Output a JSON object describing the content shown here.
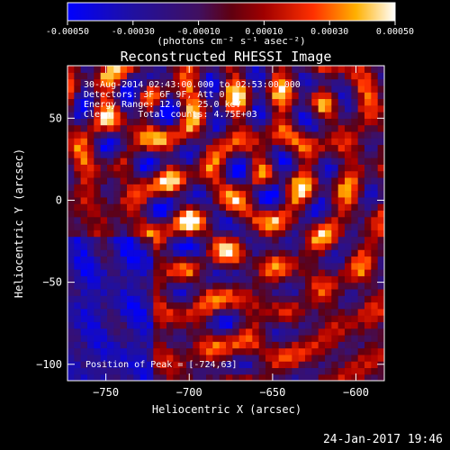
{
  "chart_data": {
    "type": "heatmap",
    "title": "Reconstructed RHESSI Image",
    "xlabel": "Heliocentric X (arcsec)",
    "ylabel": "Heliocentric Y (arcsec)",
    "xlim": [
      -773,
      -583
    ],
    "ylim": [
      -110,
      82
    ],
    "xticks": [
      -750,
      -700,
      -650,
      -600
    ],
    "yticks": [
      -100,
      -50,
      0,
      50
    ],
    "colorbar": {
      "min": -0.0005,
      "max": 0.0005,
      "ticks": [
        "-0.00050",
        "-0.00030",
        "-0.00010",
        "0.00010",
        "0.00030",
        "0.00050"
      ],
      "unit_label": "(photons cm⁻² s⁻¹ asec⁻²)"
    },
    "annotations": [
      "30-Aug-2014 02:43:00.000 to 02:53:00.000",
      "Detectors: 3F 6F 9F, Att 0",
      "Energy Range: 12.0 - 25.0 keV",
      "Clean     Total counts: 4.75E+03"
    ],
    "peak_label": "Position of Peak = [-724,63]",
    "peak": [
      -724,
      63
    ]
  },
  "footer": {
    "timestamp": "24-Jan-2017 19:46"
  }
}
